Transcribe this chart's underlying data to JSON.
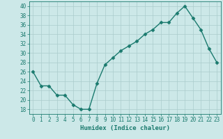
{
  "x": [
    0,
    1,
    2,
    3,
    4,
    5,
    6,
    7,
    8,
    9,
    10,
    11,
    12,
    13,
    14,
    15,
    16,
    17,
    18,
    19,
    20,
    21,
    22,
    23
  ],
  "y": [
    26,
    23,
    23,
    21,
    21,
    19,
    18,
    18,
    23.5,
    27.5,
    29,
    30.5,
    31.5,
    32.5,
    34,
    35,
    36.5,
    36.5,
    38.5,
    40,
    37.5,
    35,
    31,
    28
  ],
  "line_color": "#1a7a6e",
  "marker": "D",
  "marker_size": 2.5,
  "xlabel": "Humidex (Indice chaleur)",
  "xlim": [
    -0.5,
    23.5
  ],
  "ylim": [
    17,
    41
  ],
  "yticks": [
    18,
    20,
    22,
    24,
    26,
    28,
    30,
    32,
    34,
    36,
    38,
    40
  ],
  "xticks": [
    0,
    1,
    2,
    3,
    4,
    5,
    6,
    7,
    8,
    9,
    10,
    11,
    12,
    13,
    14,
    15,
    16,
    17,
    18,
    19,
    20,
    21,
    22,
    23
  ],
  "bg_color": "#cce8e8",
  "grid_color": "#aacccc",
  "axes_color": "#1a7a6e",
  "xlabel_fontsize": 6.5,
  "tick_fontsize": 5.5,
  "linewidth": 1.0
}
